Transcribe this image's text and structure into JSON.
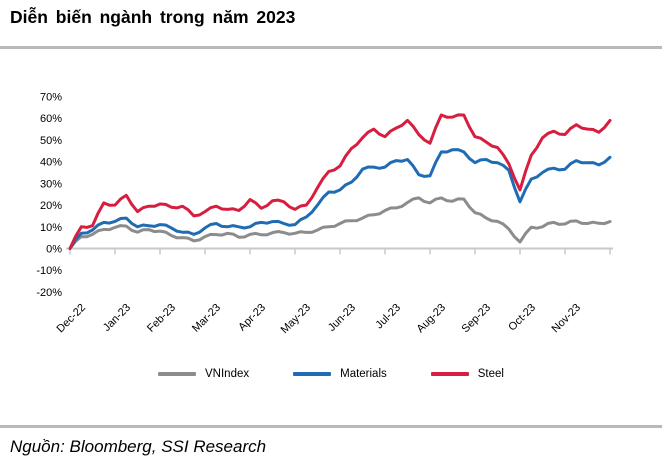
{
  "header": {
    "title": "Diễn biến ngành trong năm 2023"
  },
  "footer": {
    "source": "Nguồn: Bloomberg, SSI Research"
  },
  "colors": {
    "vnindex": "#8c8c8c",
    "materials": "#1f6cb4",
    "steel": "#d81e3f",
    "axis": "#c9c9c9",
    "rule": "#b9b9b9"
  },
  "chart_data": {
    "type": "line",
    "title": "Diễn biến ngành trong năm 2023",
    "xlabel": "",
    "ylabel": "",
    "grid": false,
    "legend_position": "bottom",
    "ylim": [
      -20,
      70
    ],
    "y_ticks": [
      70,
      60,
      50,
      40,
      30,
      20,
      10,
      0,
      -10,
      -20
    ],
    "y_tick_suffix": "%",
    "x_tick_labels": [
      "Dec-22",
      "Jan-23",
      "Feb-23",
      "Mar-23",
      "Apr-23",
      "May-23",
      "Jun-23",
      "Jul-23",
      "Aug-23",
      "Sep-23",
      "Oct-23",
      "Nov-23"
    ],
    "x_start_month": 0,
    "x_step_months": 0.25,
    "series": [
      {
        "name": "VNIndex",
        "color": "#8c8c8c",
        "values": [
          0,
          5.5,
          6.5,
          8.8,
          9.7,
          10.3,
          7.5,
          8.7,
          8,
          6,
          5,
          3.5,
          5.5,
          6.4,
          7,
          5.2,
          6.5,
          6.3,
          7.3,
          7.3,
          7,
          7.4,
          8.5,
          10,
          11.5,
          12.8,
          14,
          15.5,
          17.5,
          18.7,
          21.2,
          23.3,
          21,
          23.3,
          21.8,
          22.8,
          16.5,
          14,
          12.5,
          9,
          3,
          9.8,
          10,
          12,
          11.3,
          12.7,
          11.5,
          11.6,
          12.4
        ]
      },
      {
        "name": "Materials",
        "color": "#1f6cb4",
        "values": [
          0,
          7,
          8.5,
          12,
          12.5,
          14,
          10,
          10.5,
          11,
          9.5,
          7.5,
          6.5,
          9.5,
          11.5,
          10,
          10,
          10,
          12,
          12.4,
          11.5,
          11,
          14.5,
          20,
          26,
          27,
          30.5,
          36.5,
          37.5,
          37.5,
          40.5,
          41,
          34,
          33.5,
          44.5,
          45.5,
          44.5,
          39.5,
          41,
          39.5,
          36,
          21.5,
          32,
          35,
          37,
          36.5,
          40.5,
          39.5,
          38.5,
          42
        ]
      },
      {
        "name": "Steel",
        "color": "#d81e3f",
        "values": [
          0,
          10,
          10.5,
          21,
          20,
          24.5,
          17,
          19.5,
          20.5,
          19,
          19.5,
          15,
          17,
          19.5,
          18,
          17.5,
          22.5,
          18.5,
          22,
          21.5,
          18,
          20,
          28,
          35.5,
          38,
          46,
          51,
          55,
          51.5,
          55.5,
          59,
          52.5,
          48.5,
          61.5,
          60.5,
          61.5,
          51.5,
          49,
          46.5,
          39,
          27,
          43,
          51,
          54,
          52.5,
          57,
          55,
          53.5,
          59
        ]
      }
    ]
  }
}
